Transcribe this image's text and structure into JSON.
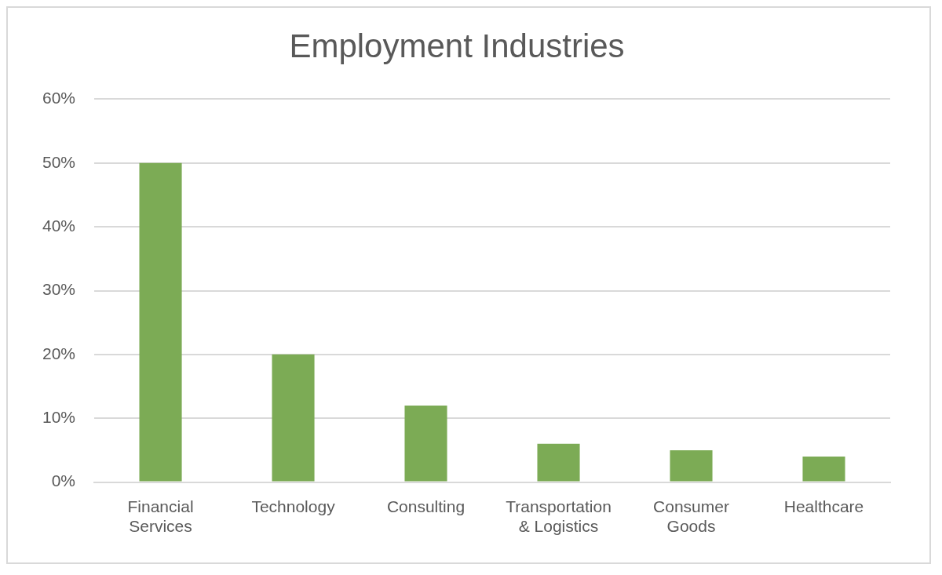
{
  "chart_data": {
    "type": "bar",
    "title": "Employment Industries",
    "categories": [
      "Financial Services",
      "Technology",
      "Consulting",
      "Transportation & Logistics",
      "Consumer Goods",
      "Healthcare"
    ],
    "values": [
      50,
      20,
      12,
      6,
      5,
      4
    ],
    "color": "#7cab55",
    "ylim": [
      0,
      60
    ],
    "yticks": [
      {
        "value": 0,
        "label": "0%"
      },
      {
        "value": 10,
        "label": "10%"
      },
      {
        "value": 20,
        "label": "20%"
      },
      {
        "value": 30,
        "label": "30%"
      },
      {
        "value": 40,
        "label": "40%"
      },
      {
        "value": 50,
        "label": "50%"
      },
      {
        "value": 60,
        "label": "60%"
      }
    ],
    "grid": true
  }
}
